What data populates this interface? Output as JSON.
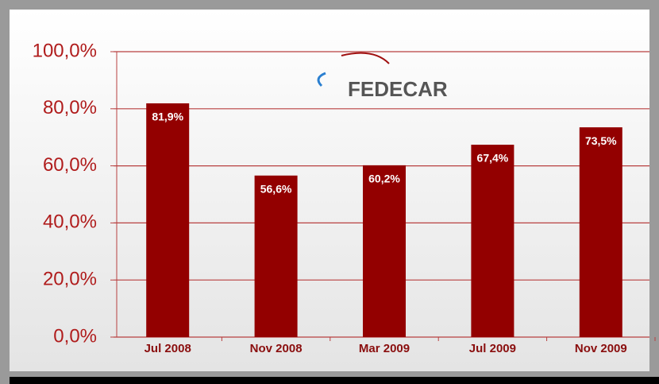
{
  "chart_data": {
    "type": "bar",
    "annotation": "FEDECAR",
    "categories": [
      "Jul 2008",
      "Nov 2008",
      "Mar 2009",
      "Jul 2009",
      "Nov 2009"
    ],
    "values": [
      81.9,
      56.6,
      60.2,
      67.4,
      73.5
    ],
    "value_labels": [
      "81,9%",
      "56,6%",
      "60,2%",
      "67,4%",
      "73,5%"
    ],
    "color": "#930000",
    "ylim": [
      0,
      100
    ],
    "yticks": [
      {
        "value": 0,
        "label": "0,0%"
      },
      {
        "value": 20,
        "label": "20,0%"
      },
      {
        "value": 40,
        "label": "40,0%"
      },
      {
        "value": 60,
        "label": "60,0%"
      },
      {
        "value": 80,
        "label": "80,0%"
      },
      {
        "value": 100,
        "label": "100,0%"
      }
    ],
    "grid": true
  }
}
